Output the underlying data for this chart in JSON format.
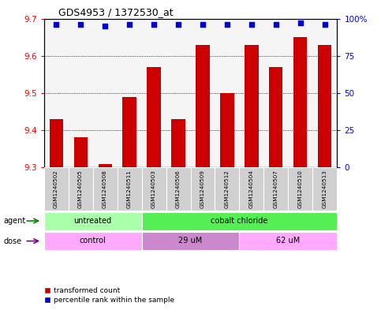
{
  "title": "GDS4953 / 1372530_at",
  "samples": [
    "GSM1240502",
    "GSM1240505",
    "GSM1240508",
    "GSM1240511",
    "GSM1240503",
    "GSM1240506",
    "GSM1240509",
    "GSM1240512",
    "GSM1240504",
    "GSM1240507",
    "GSM1240510",
    "GSM1240513"
  ],
  "red_values": [
    9.43,
    9.38,
    9.31,
    9.49,
    9.57,
    9.43,
    9.63,
    9.5,
    9.63,
    9.57,
    9.65,
    9.63
  ],
  "blue_values": [
    96,
    96,
    95,
    96,
    96,
    96,
    96,
    96,
    96,
    96,
    97,
    96
  ],
  "ylim_left": [
    9.3,
    9.7
  ],
  "ylim_right": [
    0,
    100
  ],
  "yticks_left": [
    9.3,
    9.4,
    9.5,
    9.6,
    9.7
  ],
  "yticks_right": [
    0,
    25,
    50,
    75,
    100
  ],
  "ytick_labels_right": [
    "0",
    "25",
    "50",
    "75",
    "100%"
  ],
  "grid_yticks": [
    9.4,
    9.5,
    9.6
  ],
  "bar_color": "#cc0000",
  "dot_color": "#0000cc",
  "agent_groups": [
    {
      "label": "untreated",
      "start": 0,
      "end": 3,
      "color": "#aaffaa"
    },
    {
      "label": "cobalt chloride",
      "start": 4,
      "end": 11,
      "color": "#55ee55"
    }
  ],
  "dose_groups": [
    {
      "label": "control",
      "start": 0,
      "end": 3,
      "color": "#ffaaff"
    },
    {
      "label": "29 uM",
      "start": 4,
      "end": 7,
      "color": "#cc88cc"
    },
    {
      "label": "62 uM",
      "start": 8,
      "end": 11,
      "color": "#ffaaff"
    }
  ],
  "agent_label": "agent",
  "dose_label": "dose",
  "legend_red": "transformed count",
  "legend_blue": "percentile rank within the sample",
  "background_color": "#ffffff",
  "bar_width": 0.55,
  "sample_box_color": "#d0d0d0",
  "agent_arrow_color": "#008800",
  "dose_arrow_color": "#880088"
}
